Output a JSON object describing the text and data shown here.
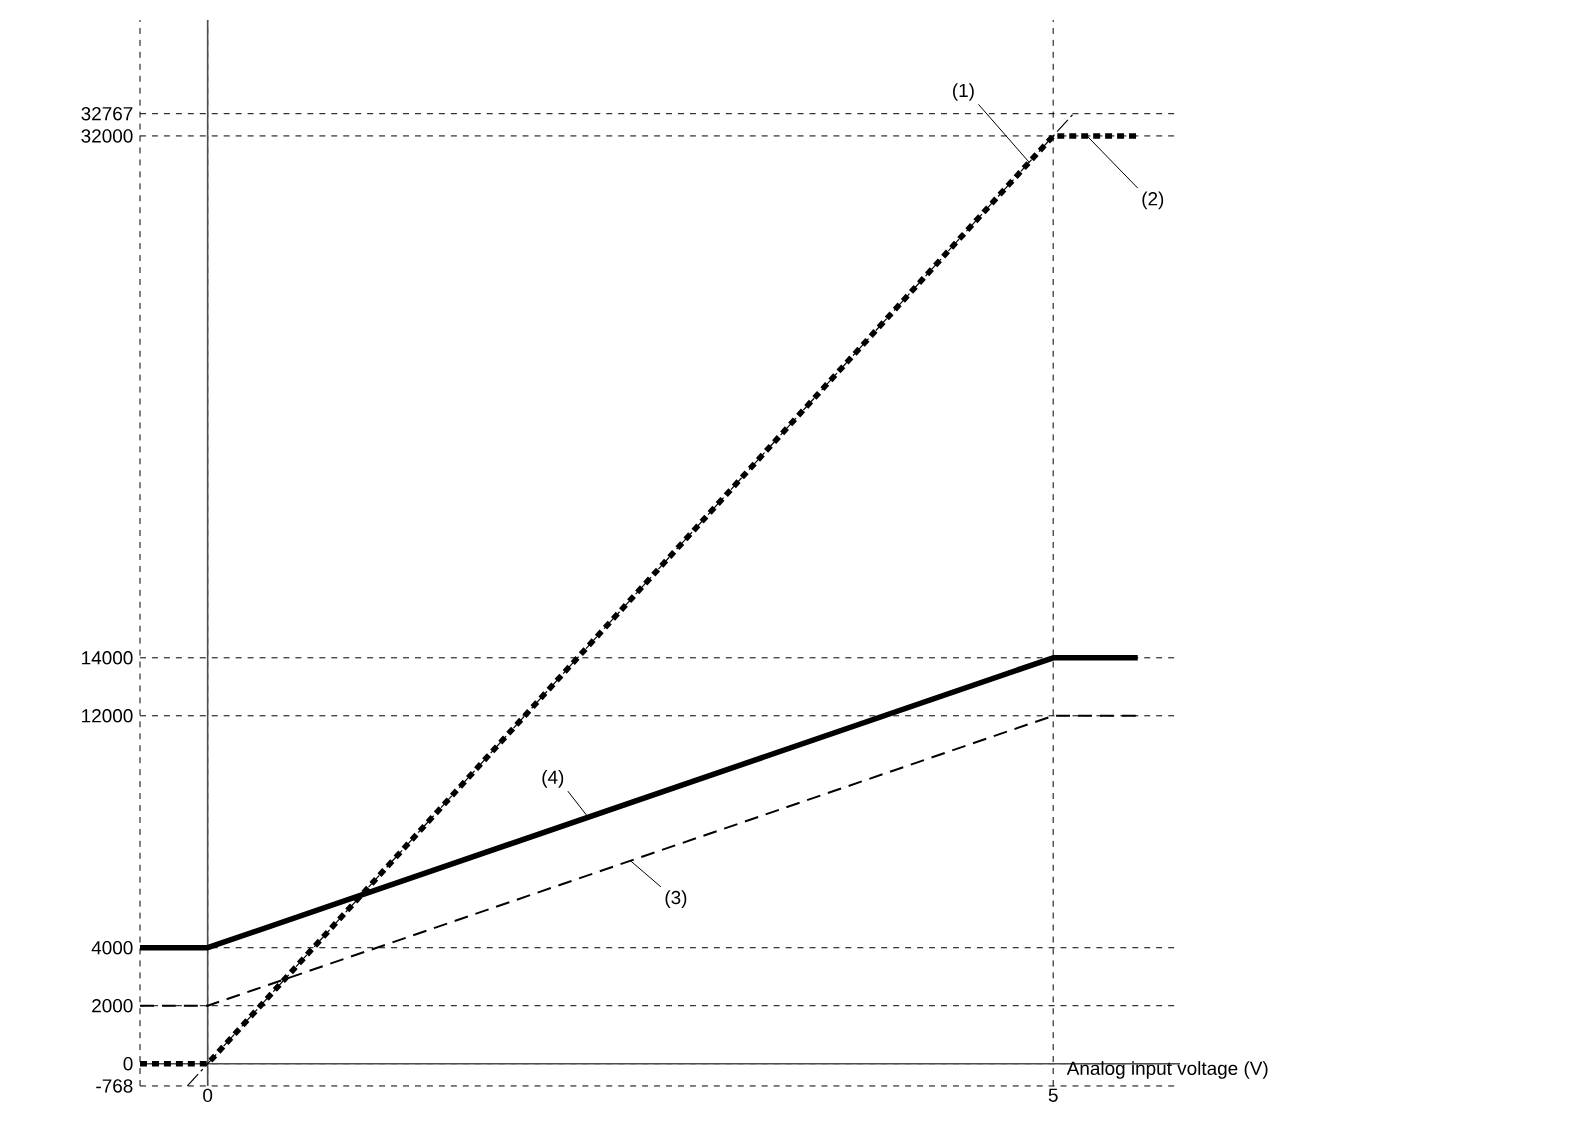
{
  "chart_data": {
    "type": "line",
    "xlabel": "Analog input voltage (V)",
    "xlim": [
      -0.4,
      5.75
    ],
    "ylim": [
      -768,
      36000
    ],
    "xticks": [
      0,
      5
    ],
    "yticks": [
      -768,
      0,
      2000,
      4000,
      12000,
      14000,
      32000,
      32767
    ],
    "grid": true,
    "marker": "none",
    "series": [
      {
        "name": "(1)",
        "color": "#000000",
        "line_style": "dashed",
        "x": [
          -0.12,
          5.12
        ],
        "values": [
          -768,
          32767
        ]
      },
      {
        "name": "(2)",
        "color": "#000000",
        "line_style": "dotted",
        "x": [
          -0.4,
          0,
          5,
          5.5
        ],
        "values": [
          0,
          0,
          32000,
          32000
        ]
      },
      {
        "name": "(3)",
        "color": "#000000",
        "line_style": "dashed",
        "x": [
          -0.4,
          0,
          5,
          5.5
        ],
        "values": [
          2000,
          2000,
          12000,
          12000
        ]
      },
      {
        "name": "(4)",
        "color": "#000000",
        "line_style": "solid",
        "x": [
          -0.4,
          0,
          5,
          5.5
        ],
        "values": [
          4000,
          4000,
          14000,
          14000
        ]
      }
    ]
  }
}
